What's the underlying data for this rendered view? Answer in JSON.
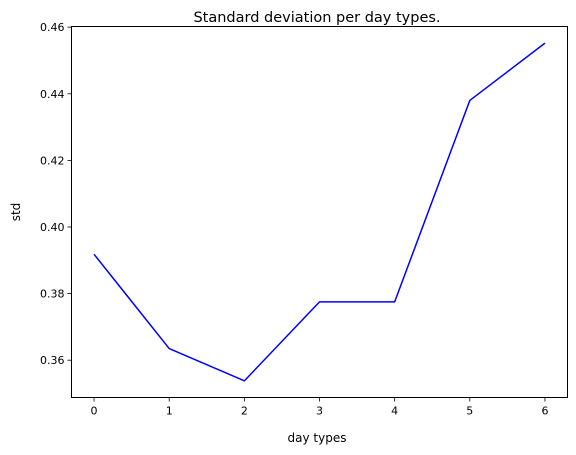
{
  "chart_data": {
    "type": "line",
    "title": "Standard deviation per day types.",
    "xlabel": "day types",
    "ylabel": "std",
    "x": [
      0,
      1,
      2,
      3,
      4,
      5,
      6
    ],
    "x_ticks": [
      "0",
      "1",
      "2",
      "3",
      "4",
      "5",
      "6"
    ],
    "y_ticks": [
      "0.36",
      "0.38",
      "0.40",
      "0.42",
      "0.44",
      "0.46"
    ],
    "xlim": [
      -0.3,
      6.3
    ],
    "ylim": [
      0.3488,
      0.4602
    ],
    "series": [
      {
        "values": [
          0.3918,
          0.3635,
          0.3538,
          0.3775,
          0.3775,
          0.438,
          0.4552
        ],
        "color": "#0000ff"
      }
    ],
    "grid": false,
    "legend": "none"
  }
}
